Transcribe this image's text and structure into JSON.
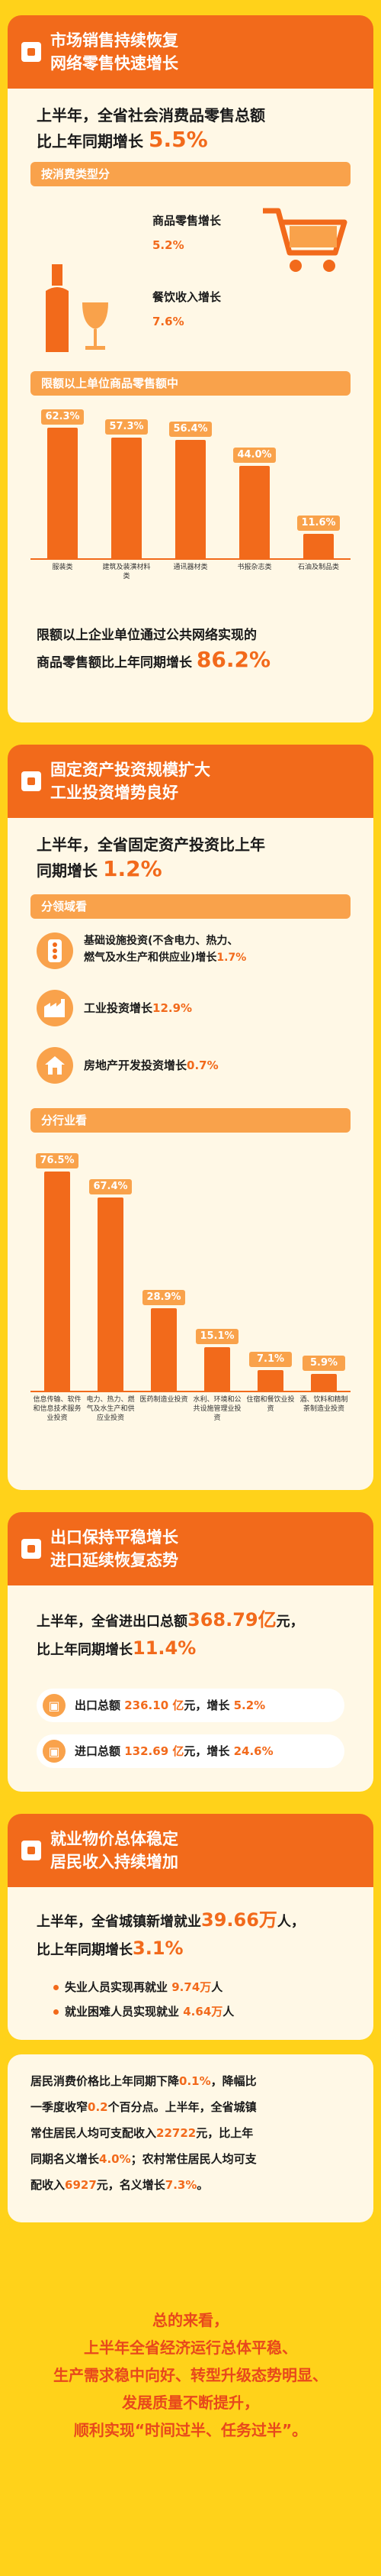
{
  "sec1": {
    "title_l1": "市场销售持续恢复",
    "title_l2": "网络零售快速增长",
    "headline_pre": "上半年，全省社会消费品零售总额",
    "headline_post": "比上年同期增长",
    "headline_value": "5.5%",
    "sub1": "按消费类型分",
    "retail_label": "商品零售增长",
    "retail_value": "5.2%",
    "catering_label": "餐饮收入增长",
    "catering_value": "7.6%",
    "sub2": "限额以上单位商品零售额中",
    "summary_l1": "限额以上企业单位通过公共网络实现的",
    "summary_l2": "商品零售额比上年同期增长",
    "summary_value": "86.2%"
  },
  "chart1": {
    "type": "bar",
    "categories": [
      "服装类",
      "建筑及装潢材料类",
      "通讯器材类",
      "书报杂志类",
      "石油及制品类"
    ],
    "values": [
      62.3,
      57.3,
      56.4,
      44.0,
      11.6
    ],
    "labels": [
      "62.3%",
      "57.3%",
      "56.4%",
      "44.0%",
      "11.6%"
    ]
  },
  "sec2": {
    "title_l1": "固定资产投资规模扩大",
    "title_l2": "工业投资增势良好",
    "headline_l1": "上半年，全省固定资产投资比上年",
    "headline_l2": "同期增长",
    "headline_value": "1.2%",
    "sub1": "分领域看",
    "infra_l1": "基础设施投资(不含电力、热力、",
    "infra_l2": "燃气及水生产和供应业)增长",
    "infra_value": "1.7%",
    "industry_label": "工业投资增长",
    "industry_value": "12.9%",
    "realestate_label": "房地产开发投资增长",
    "realestate_value": "0.7%",
    "sub2": "分行业看"
  },
  "chart2": {
    "type": "bar",
    "categories": [
      "信息传输、软件和信息技术服务业投资",
      "电力、热力、燃气及水生产和供应业投资",
      "医药制造业投资",
      "水利、环境和公共设施管理业投资",
      "住宿和餐饮业投资",
      "酒、饮料和精制茶制造业投资"
    ],
    "values": [
      76.5,
      67.4,
      28.9,
      15.1,
      7.1,
      5.9
    ],
    "labels": [
      "76.5%",
      "67.4%",
      "28.9%",
      "15.1%",
      "7.1%",
      "5.9%"
    ]
  },
  "sec3": {
    "title_l1": "出口保持平稳增长",
    "title_l2": "进口延续恢复态势",
    "headline_pre": "上半年，全省进出口总额",
    "headline_value": "368.79亿",
    "headline_unit": "元，",
    "headline_l2": "比上年同期增长",
    "headline_growth": "11.4%",
    "export_label": "出口总额",
    "export_value": "236.10 亿",
    "export_mid": "元，增长",
    "export_growth": "5.2%",
    "import_label": "进口总额",
    "import_value": "132.69 亿",
    "import_mid": "元，增长",
    "import_growth": "24.6%"
  },
  "sec4": {
    "title_l1": "就业物价总体稳定",
    "title_l2": "居民收入持续增加",
    "headline_pre": "上半年，全省城镇新增就业",
    "headline_value": "39.66万",
    "headline_unit": "人，",
    "headline_l2": "比上年同期增长",
    "headline_growth": "3.1%",
    "reemploy_label": "失业人员实现再就业",
    "reemploy_value": "9.74万",
    "reemploy_unit": "人",
    "hard_label": "就业困难人员实现就业",
    "hard_value": "4.64万",
    "hard_unit": "人",
    "p1": "居民消费价格比上年同期下降",
    "p1v": "0.1%",
    "p2": "，降幅比",
    "p3": "一季度收窄",
    "p3v": "0.2",
    "p4": "个百分点。上半年，全省城镇",
    "p5": "常住居民人均可支配收入",
    "p5v": "22722",
    "p6": "元，比上年",
    "p7": "同期名义增长",
    "p7v": "4.0%",
    "p8": "；农村常住居民人均可支",
    "p9": "配收入",
    "p9v": "6927",
    "p10": "元，名义增长",
    "p10v": "7.3%",
    "p11": "。"
  },
  "closing": {
    "l1": "总的来看，",
    "l2": "上半年全省经济运行总体平稳、",
    "l3": "生产需求稳中向好、转型升级态势明显、",
    "l4": "发展质量不断提升，",
    "l5": "顺利实现“时间过半、任务过半”。"
  },
  "colors": {
    "accent": "#F26A1B",
    "background": "#FFD21A",
    "card": "#FFF8E6",
    "light_accent": "#F9A24B"
  }
}
